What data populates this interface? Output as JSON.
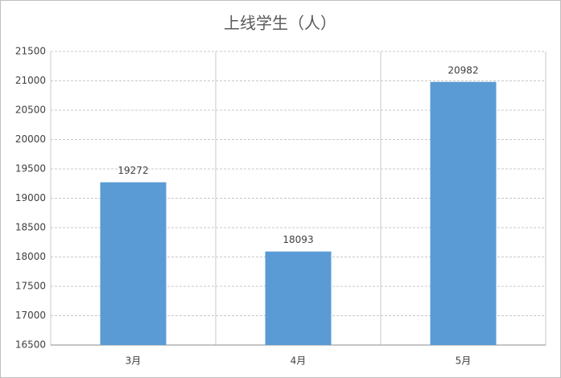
{
  "chart_data": {
    "type": "bar",
    "title": "上线学生（人）",
    "categories": [
      "3月",
      "4月",
      "5月"
    ],
    "values": [
      19272,
      18093,
      20982
    ],
    "color": "#5b9bd5",
    "ylim": [
      16500,
      21500
    ],
    "yticks": [
      16500,
      17000,
      17500,
      18000,
      18500,
      19000,
      19500,
      20000,
      20500,
      21000,
      21500
    ],
    "grid": true
  }
}
